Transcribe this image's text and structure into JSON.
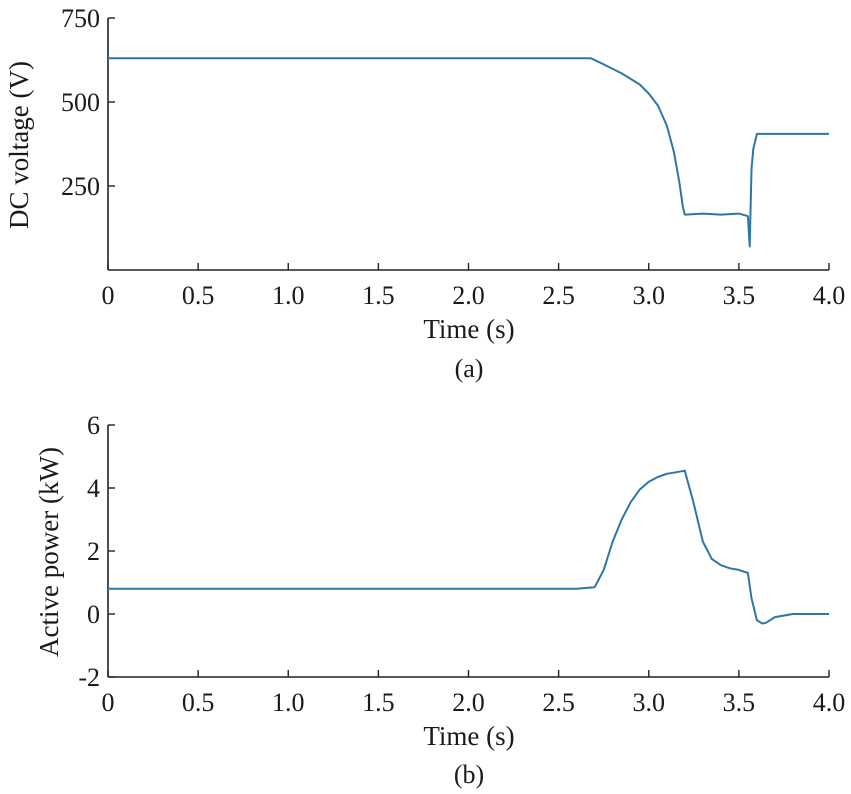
{
  "chart_data": [
    {
      "type": "line",
      "caption": "(a)",
      "xlabel": "Time (s)",
      "ylabel": "DC voltage (V)",
      "xlim": [
        0,
        4.0
      ],
      "ylim": [
        0,
        750
      ],
      "xticks": [
        0,
        0.5,
        1.0,
        1.5,
        2.0,
        2.5,
        3.0,
        3.5,
        4.0
      ],
      "xtick_labels": [
        "0",
        "0.5",
        "1.0",
        "1.5",
        "2.0",
        "2.5",
        "3.0",
        "3.5",
        "4.0"
      ],
      "yticks": [
        250,
        500,
        750
      ],
      "ytick_labels": [
        "250",
        "500",
        "750"
      ],
      "grid": false,
      "series": [
        {
          "color": "#2f76a8",
          "x": [
            0,
            0.5,
            1.0,
            1.5,
            2.0,
            2.5,
            2.68,
            2.75,
            2.85,
            2.95,
            3.0,
            3.05,
            3.1,
            3.14,
            3.17,
            3.19,
            3.2,
            3.3,
            3.4,
            3.5,
            3.55,
            3.56,
            3.57,
            3.58,
            3.6,
            3.8,
            4.0
          ],
          "y": [
            630,
            630,
            630,
            630,
            630,
            630,
            630,
            612,
            585,
            552,
            525,
            490,
            430,
            350,
            260,
            185,
            165,
            168,
            165,
            168,
            160,
            70,
            300,
            360,
            405,
            405,
            405
          ]
        }
      ]
    },
    {
      "type": "line",
      "caption": "(b)",
      "xlabel": "Time (s)",
      "ylabel": "Active power (kW)",
      "xlim": [
        0,
        4.0
      ],
      "ylim": [
        -2,
        6
      ],
      "xticks": [
        0,
        0.5,
        1.0,
        1.5,
        2.0,
        2.5,
        3.0,
        3.5,
        4.0
      ],
      "xtick_labels": [
        "0",
        "0.5",
        "1.0",
        "1.5",
        "2.0",
        "2.5",
        "3.0",
        "3.5",
        "4.0"
      ],
      "yticks": [
        -2,
        0,
        2,
        4,
        6
      ],
      "ytick_labels": [
        "-2",
        "0",
        "2",
        "4",
        "6"
      ],
      "grid": false,
      "series": [
        {
          "color": "#2f76a8",
          "x": [
            0,
            0.5,
            1.0,
            1.5,
            2.0,
            2.5,
            2.6,
            2.7,
            2.75,
            2.8,
            2.85,
            2.9,
            2.95,
            3.0,
            3.05,
            3.1,
            3.15,
            3.2,
            3.25,
            3.3,
            3.35,
            3.4,
            3.45,
            3.5,
            3.55,
            3.57,
            3.6,
            3.63,
            3.65,
            3.7,
            3.8,
            3.9,
            4.0
          ],
          "y": [
            0.8,
            0.8,
            0.8,
            0.8,
            0.8,
            0.8,
            0.8,
            0.85,
            1.4,
            2.3,
            3.0,
            3.55,
            3.95,
            4.2,
            4.35,
            4.45,
            4.5,
            4.55,
            3.5,
            2.3,
            1.75,
            1.55,
            1.45,
            1.4,
            1.3,
            0.5,
            -0.2,
            -0.3,
            -0.28,
            -0.1,
            0.0,
            0.0,
            0.0
          ]
        }
      ]
    }
  ]
}
